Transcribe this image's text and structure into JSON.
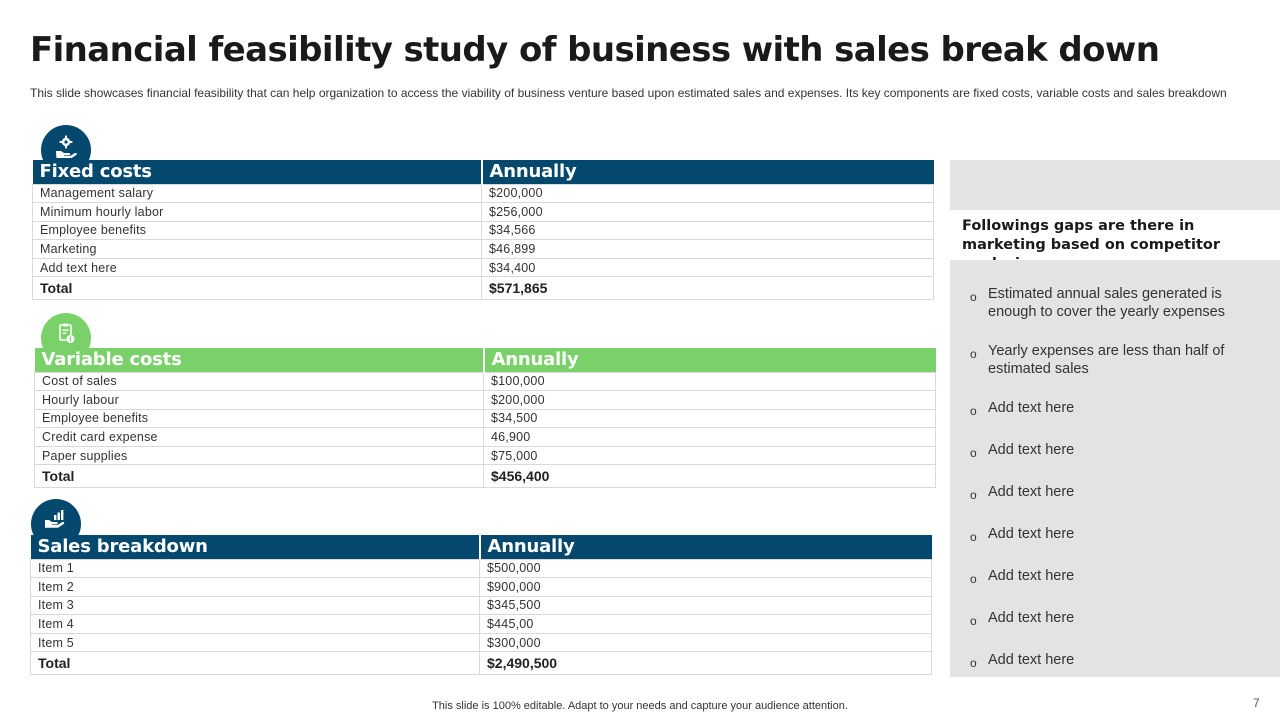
{
  "title": "Financial feasibility study of business with sales break down",
  "subtitle": "This slide showcases financial feasibility that can help organization to access the viability of business venture based upon estimated sales and expenses. Its key components are fixed costs, variable costs and sales breakdown",
  "colors": {
    "navy": "#05486e",
    "green": "#7ad16a",
    "panel": "#e3e3e3"
  },
  "fixed_costs": {
    "icon": "gear-hand-icon",
    "header": "Fixed costs",
    "col": "Annually",
    "rows": [
      {
        "label": "Management salary",
        "value": "$200,000"
      },
      {
        "label": "Minimum hourly labor",
        "value": "$256,000"
      },
      {
        "label": "Employee benefits",
        "value": "$34,566"
      },
      {
        "label": "Marketing",
        "value": "$46,899"
      },
      {
        "label": "Add text here",
        "value": "$34,400"
      }
    ],
    "total_label": "Total",
    "total_value": "$571,865"
  },
  "variable_costs": {
    "icon": "clipboard-dollar-icon",
    "header": "Variable costs",
    "col": "Annually",
    "rows": [
      {
        "label": "Cost of sales",
        "value": "$100,000"
      },
      {
        "label": "Hourly labour",
        "value": "$200,000"
      },
      {
        "label": "Employee benefits",
        "value": "$34,500"
      },
      {
        "label": "Credit card expense",
        "value": "46,900"
      },
      {
        "label": "Paper supplies",
        "value": "$75,000"
      }
    ],
    "total_label": "Total",
    "total_value": "$456,400"
  },
  "sales_breakdown": {
    "icon": "hand-growth-chart-icon",
    "header": "Sales breakdown",
    "col": "Annually",
    "rows": [
      {
        "label": "Item 1",
        "value": "$500,000"
      },
      {
        "label": "Item 2",
        "value": "$900,000"
      },
      {
        "label": "Item 3",
        "value": "$345,500"
      },
      {
        "label": "Item 4",
        "value": "$445,00"
      },
      {
        "label": "Item 5",
        "value": "$300,000"
      }
    ],
    "total_label": "Total",
    "total_value": "$2,490,500"
  },
  "gaps": {
    "heading": "Followings gaps are there in marketing based on competitor analysis:",
    "bullet": "o",
    "items": [
      "Estimated annual sales generated is enough to cover the yearly expenses",
      "Yearly expenses are less than half of estimated sales",
      "Add text here",
      "Add text here",
      "Add text here",
      "Add text here",
      "Add text here",
      "Add text here",
      "Add text here"
    ]
  },
  "footer": "This slide is 100% editable. Adapt to your needs and capture your audience attention.",
  "page_number": "7"
}
